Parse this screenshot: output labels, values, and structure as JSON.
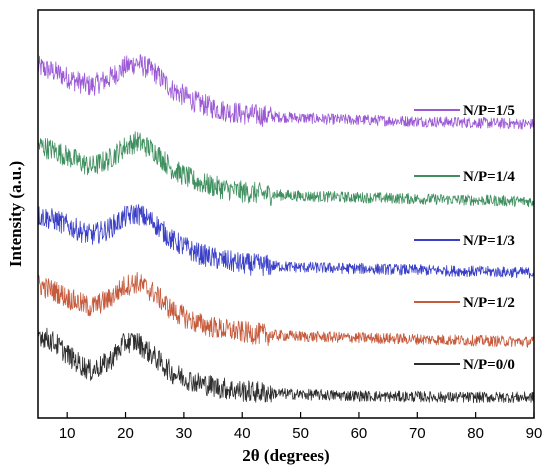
{
  "chart_data": {
    "type": "line",
    "title": "",
    "xlabel": "2θ (degrees)",
    "ylabel": "Intensity (a.u.)",
    "xlim": [
      5,
      90
    ],
    "x_ticks": [
      10,
      20,
      30,
      40,
      50,
      60,
      70,
      80,
      90
    ],
    "y_ticks_shown": false,
    "grid": false,
    "legend_placement": "inline-right",
    "series": [
      {
        "name": "N/P=1/5",
        "color": "#9b59d6",
        "x": [
          5,
          8,
          11,
          14,
          17,
          20,
          22,
          25,
          28,
          32,
          36,
          40,
          45,
          50,
          55,
          60,
          65,
          70,
          75,
          80,
          85,
          90
        ],
        "y": [
          4.78,
          4.7,
          4.59,
          4.5,
          4.6,
          4.78,
          4.84,
          4.7,
          4.45,
          4.27,
          4.16,
          4.1,
          4.06,
          4.04,
          4.02,
          4.01,
          4.0,
          3.99,
          3.98,
          3.97,
          3.96,
          3.95
        ]
      },
      {
        "name": "N/P=1/4",
        "color": "#3f8f5f",
        "x": [
          5,
          8,
          11,
          14,
          17,
          20,
          22,
          25,
          28,
          32,
          36,
          40,
          45,
          50,
          55,
          60,
          65,
          70,
          75,
          80,
          85,
          90
        ],
        "y": [
          3.65,
          3.56,
          3.45,
          3.33,
          3.43,
          3.63,
          3.7,
          3.56,
          3.3,
          3.12,
          3.03,
          2.97,
          2.93,
          2.91,
          2.9,
          2.89,
          2.88,
          2.87,
          2.86,
          2.85,
          2.84,
          2.83
        ]
      },
      {
        "name": "N/P=1/3",
        "color": "#3a3fc8",
        "x": [
          5,
          8,
          11,
          14,
          17,
          20,
          22,
          25,
          28,
          32,
          36,
          40,
          45,
          50,
          55,
          60,
          65,
          70,
          75,
          80,
          85,
          90
        ],
        "y": [
          2.63,
          2.56,
          2.45,
          2.34,
          2.43,
          2.61,
          2.66,
          2.52,
          2.27,
          2.09,
          1.99,
          1.93,
          1.9,
          1.88,
          1.87,
          1.86,
          1.85,
          1.84,
          1.83,
          1.82,
          1.81,
          1.8
        ]
      },
      {
        "name": "N/P=1/2",
        "color": "#c65a3c",
        "x": [
          5,
          8,
          11,
          14,
          17,
          20,
          22,
          25,
          28,
          32,
          36,
          40,
          45,
          50,
          55,
          60,
          65,
          70,
          75,
          80,
          85,
          90
        ],
        "y": [
          1.63,
          1.53,
          1.4,
          1.3,
          1.41,
          1.62,
          1.66,
          1.5,
          1.25,
          1.08,
          0.99,
          0.94,
          0.9,
          0.88,
          0.87,
          0.86,
          0.85,
          0.84,
          0.83,
          0.82,
          0.81,
          0.8
        ]
      },
      {
        "name": "N/P=0/0",
        "color": "#2e2e2e",
        "x": [
          5,
          8,
          11,
          14,
          17,
          20,
          22,
          25,
          28,
          32,
          36,
          40,
          45,
          50,
          55,
          60,
          65,
          70,
          75,
          80,
          85,
          90
        ],
        "y": [
          0.92,
          0.78,
          0.55,
          0.38,
          0.5,
          0.8,
          0.8,
          0.58,
          0.35,
          0.22,
          0.14,
          0.09,
          0.06,
          0.04,
          0.03,
          0.02,
          0.01,
          0.01,
          0.0,
          0.0,
          0.0,
          0.0
        ]
      }
    ]
  }
}
